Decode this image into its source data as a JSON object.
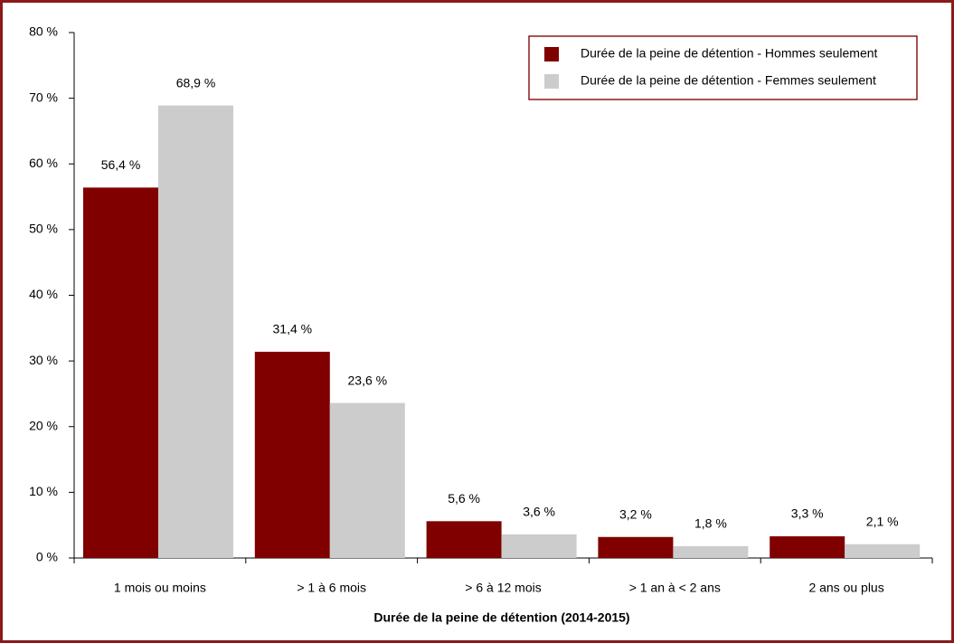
{
  "chart_data": {
    "type": "bar",
    "x_label": "Durée de la peine de détention  (2014-2015)",
    "categories": [
      "1 mois ou moins",
      "> 1 à 6 mois",
      "> 6 à 12 mois",
      "> 1 an à < 2 ans",
      "2 ans ou plus"
    ],
    "series": [
      {
        "name": "Durée de la peine de détention - Hommes seulement",
        "color": "#800000",
        "values": [
          56.4,
          31.4,
          5.6,
          3.2,
          3.3
        ],
        "value_labels": [
          "56,4 %",
          "31,4 %",
          "5,6 %",
          "3,2 %",
          "3,3 %"
        ]
      },
      {
        "name": "Durée de la peine de détention - Femmes seulement",
        "color": "#cccccc",
        "values": [
          68.9,
          23.6,
          3.6,
          1.8,
          2.1
        ],
        "value_labels": [
          "68,9 %",
          "23,6 %",
          "3,6 %",
          "1,8 %",
          "2,1 %"
        ]
      }
    ],
    "ylim": [
      0,
      80
    ],
    "yticks": [
      {
        "value": 0,
        "label": "0 %"
      },
      {
        "value": 10,
        "label": "10 %"
      },
      {
        "value": 20,
        "label": "20 %"
      },
      {
        "value": 30,
        "label": "30 %"
      },
      {
        "value": 40,
        "label": "40 %"
      },
      {
        "value": 50,
        "label": "50 %"
      },
      {
        "value": 60,
        "label": "60 %"
      },
      {
        "value": 70,
        "label": "70 %"
      },
      {
        "value": 80,
        "label": "80 %"
      }
    ],
    "grid": false,
    "legend": "top-right"
  }
}
